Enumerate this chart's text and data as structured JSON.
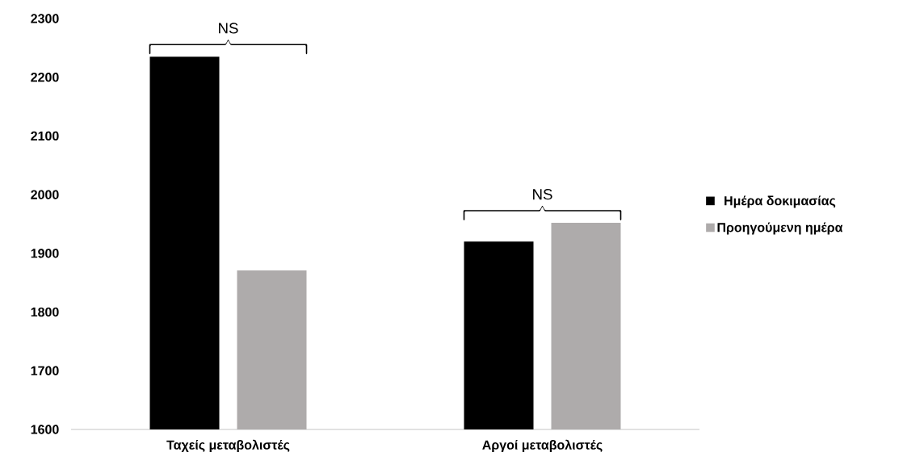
{
  "chart_data": {
    "type": "bar",
    "categories": [
      "Ταχείς μεταβολιστές",
      "Αργοί μεταβολιστές"
    ],
    "series": [
      {
        "name": "Ημέρα δοκιμασίας",
        "color": "#000000",
        "values": [
          2235,
          1920
        ]
      },
      {
        "name": "Προηγούμενη ημέρα",
        "color": "#aeabab",
        "values": [
          1871,
          1952
        ]
      }
    ],
    "annotations": [
      "NS",
      "NS"
    ],
    "ylim": [
      1600,
      2300
    ],
    "yticks": [
      1600,
      1700,
      1800,
      1900,
      2000,
      2100,
      2200,
      2300
    ],
    "grid": false,
    "legend": "right"
  }
}
